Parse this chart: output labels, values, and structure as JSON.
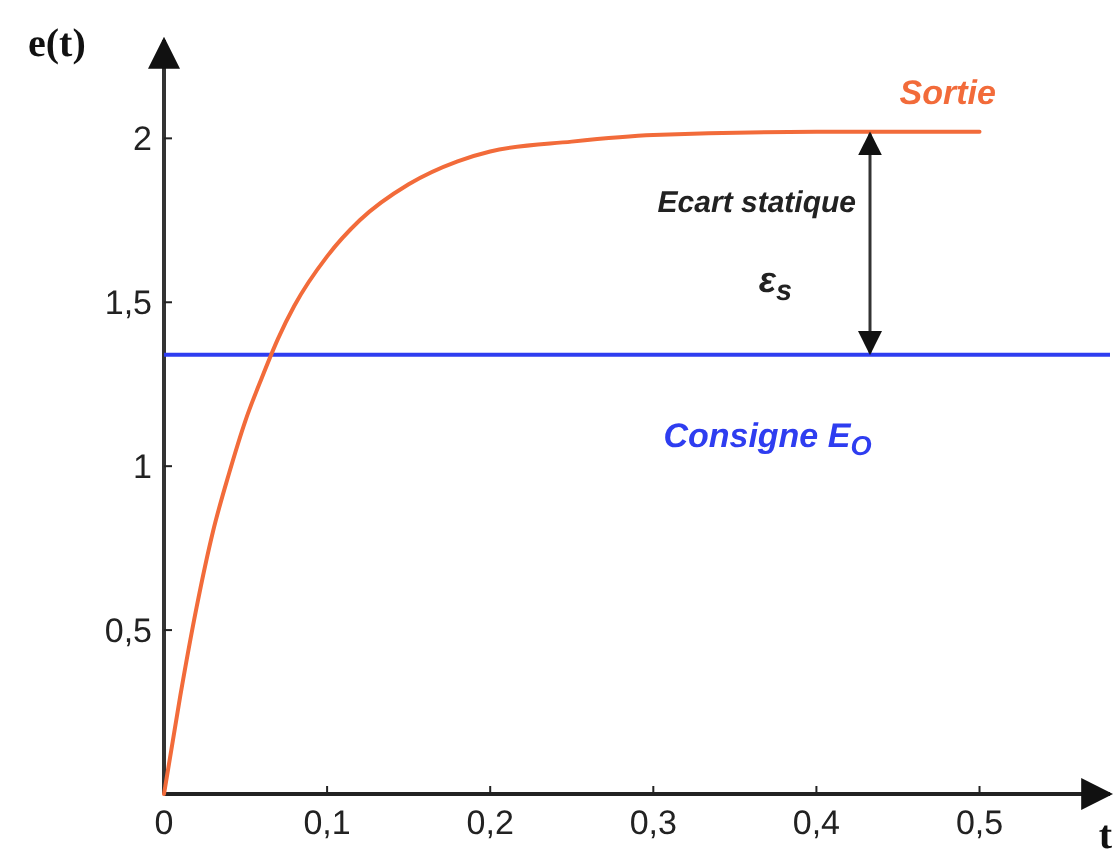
{
  "chart_data": {
    "type": "line",
    "xlabel": "t",
    "ylabel": "e(t)",
    "xlim": [
      0,
      0.58
    ],
    "ylim": [
      0,
      2.3
    ],
    "xticks": [
      0,
      {
        "value": 0.1,
        "label": "0,1"
      },
      {
        "value": 0.2,
        "label": "0,2"
      },
      {
        "value": 0.3,
        "label": "0,3"
      },
      {
        "value": 0.4,
        "label": "0,4"
      },
      {
        "value": 0.5,
        "label": "0,5"
      }
    ],
    "yticks": [
      {
        "value": 0.5,
        "label": "0,5"
      },
      1,
      {
        "value": 1.5,
        "label": "1,5"
      },
      2
    ],
    "grid": false,
    "marker": "none",
    "line_style": "solid",
    "series": [
      {
        "name": "Sortie",
        "color": "#f26b3a",
        "x": [
          0,
          0.01,
          0.02,
          0.03,
          0.04,
          0.05,
          0.06,
          0.07,
          0.08,
          0.1,
          0.12,
          0.15,
          0.18,
          0.2,
          0.25,
          0.3,
          0.4,
          0.5
        ],
        "values": [
          0,
          0.3,
          0.57,
          0.8,
          0.98,
          1.14,
          1.27,
          1.39,
          1.49,
          1.64,
          1.75,
          1.86,
          1.93,
          1.96,
          1.99,
          2.01,
          2.02,
          2.02
        ]
      }
    ],
    "ref_lines": [
      {
        "axis": "y",
        "value": 1.34,
        "label": "Consigne E$_{O}$",
        "color": "#2e3df0"
      }
    ],
    "annotations": [
      "Ecart statique",
      "ε$_{s}$"
    ]
  }
}
